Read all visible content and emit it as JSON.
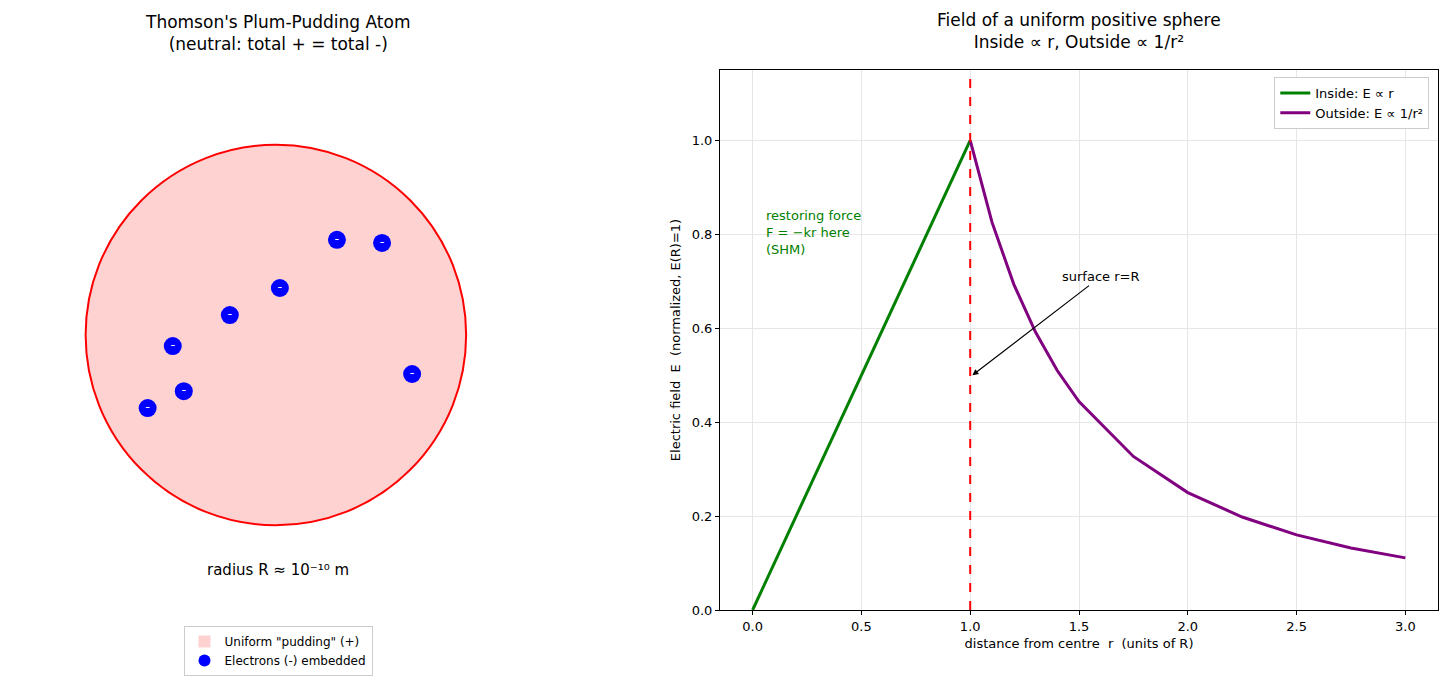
{
  "diagram": {
    "title": "Thomson's Plum-Pudding Atom\n(neutral: total + = total -)",
    "caption": "radius R ≈ 10⁻¹⁰ m",
    "electron_symbol": "-",
    "legend": [
      {
        "label": "Uniform \"pudding\" (+)",
        "color": "#ffd2d2",
        "edge_color": "#ff0000"
      },
      {
        "label": "Electrons (-) embedded",
        "color": "#0000ff"
      }
    ]
  },
  "chart_data": {
    "type": "line",
    "title": "Field of a uniform positive sphere\nInside ∝ r, Outside ∝ 1/r²",
    "x_label": "distance from centre  r  (units of R)",
    "y_label": "Electric field  E  (normalized, E(R)=1)",
    "series": [
      {
        "name": "Inside: E ∝ r",
        "color": "#008000",
        "line_style": "solid",
        "x": [
          0,
          0.25,
          0.5,
          0.75,
          1
        ],
        "values": [
          0,
          0.25,
          0.5,
          0.75,
          1
        ]
      },
      {
        "name": "Outside: E ∝ 1/r²",
        "color": "#800080",
        "line_style": "solid",
        "x": [
          1,
          1.1,
          1.2,
          1.3,
          1.4,
          1.5,
          1.75,
          2,
          2.25,
          2.5,
          2.75,
          3
        ],
        "values": [
          1,
          0.826,
          0.694,
          0.592,
          0.51,
          0.444,
          0.327,
          0.25,
          0.198,
          0.16,
          0.132,
          0.111
        ]
      }
    ],
    "reference_lines": [
      {
        "x": 1,
        "color": "#ff0000",
        "line_style": "dashed"
      }
    ],
    "annotations": [
      {
        "text": "restoring force\nF = −kr here\n(SHM)",
        "x": 0.05,
        "y": 0.805,
        "color": "#008000"
      },
      {
        "text": "surface r=R",
        "x": 1.01,
        "y": 0.5,
        "text_x": 1.6,
        "text_y": 0.71,
        "color": "#000000"
      }
    ],
    "xlim": [
      -0.15,
      3.15
    ],
    "ylim": [
      0,
      1.15
    ],
    "xticks": [
      {
        "value": 0,
        "label": "0.0"
      },
      {
        "value": 0.5,
        "label": "0.5"
      },
      {
        "value": 1,
        "label": "1.0"
      },
      {
        "value": 1.5,
        "label": "1.5"
      },
      {
        "value": 2,
        "label": "2.0"
      },
      {
        "value": 2.5,
        "label": "2.5"
      },
      {
        "value": 3,
        "label": "3.0"
      }
    ],
    "yticks": [
      {
        "value": 0,
        "label": "0.0"
      },
      {
        "value": 0.2,
        "label": "0.2"
      },
      {
        "value": 0.4,
        "label": "0.4"
      },
      {
        "value": 0.6,
        "label": "0.6"
      },
      {
        "value": 0.8,
        "label": "0.8"
      },
      {
        "value": 1,
        "label": "1.0"
      }
    ],
    "grid": true,
    "legend": "upper right"
  }
}
